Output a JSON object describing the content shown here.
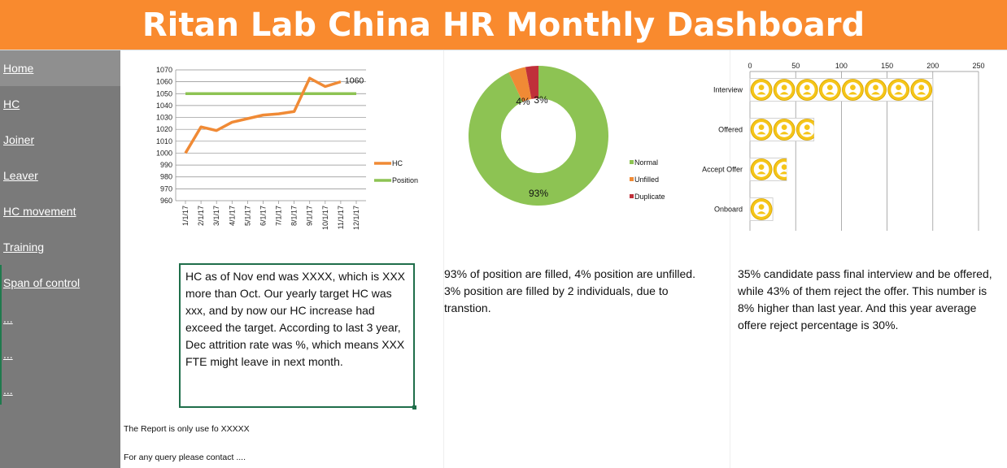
{
  "header": {
    "title": "Ritan Lab China HR Monthly Dashboard"
  },
  "sidebar": {
    "items": [
      {
        "label": "Home",
        "active": true
      },
      {
        "label": "HC"
      },
      {
        "label": "Joiner"
      },
      {
        "label": "Leaver"
      },
      {
        "label": "HC movement"
      },
      {
        "label": "Training "
      },
      {
        "label": "Span of control"
      },
      {
        "label": "..."
      },
      {
        "label": "..."
      },
      {
        "label": "..."
      }
    ]
  },
  "colors": {
    "header": "#f98a2e",
    "sidebar": "#7a7a7a",
    "hc": "#f08a35",
    "position": "#8dc353",
    "normal": "#8dc353",
    "unfilled": "#f08a35",
    "duplicate": "#c0303a",
    "pictogram": "#f5c518"
  },
  "chart_data": [
    {
      "type": "line",
      "x": [
        "1/1/17",
        "2/1/17",
        "3/1/17",
        "4/1/17",
        "5/1/17",
        "6/1/17",
        "7/1/17",
        "8/1/17",
        "9/1/17",
        "10/1/17",
        "11/1/17",
        "12/1/17"
      ],
      "series": [
        {
          "name": "HC",
          "values": [
            1000,
            1022,
            1019,
            1026,
            1029,
            1032,
            1033,
            1035,
            1063,
            1056,
            1060,
            null
          ]
        },
        {
          "name": "Position",
          "values": [
            1050,
            1050,
            1050,
            1050,
            1050,
            1050,
            1050,
            1050,
            1050,
            1050,
            1050,
            1050
          ]
        }
      ],
      "ylim": [
        960,
        1070
      ],
      "yticks": [
        960,
        970,
        980,
        990,
        1000,
        1010,
        1020,
        1030,
        1040,
        1050,
        1060,
        1070
      ],
      "data_label": "1060",
      "grid": true,
      "legend": "right"
    },
    {
      "type": "pie",
      "donut": true,
      "categories": [
        "Normal",
        "Unfilled",
        "Duplicate"
      ],
      "values": [
        93,
        4,
        3
      ],
      "labels": [
        "93%",
        "4%",
        "3%"
      ],
      "legend": "right"
    },
    {
      "type": "bar",
      "orientation": "horizontal",
      "categories": [
        "Interview",
        "Offered",
        "Accept Offer",
        "Onboard"
      ],
      "values": [
        200,
        70,
        40,
        25
      ],
      "xlim": [
        0,
        250
      ],
      "xticks": [
        0,
        50,
        100,
        150,
        200,
        250
      ],
      "pictogram_unit": 25,
      "grid": true,
      "axis_position": "top"
    }
  ],
  "notes": {
    "hc_box": "HC as of Nov end was XXXX, which is XXX more than Oct. Our yearly target HC was xxx, and by now our HC increase had exceed the target. According to last 3 year, Dec attrition rate was %, which means XXX FTE might leave in next month.",
    "position_text": "93% of position are filled, 4% position are unfilled. 3% position are filled by 2 individuals, due to transtion.",
    "recruit_text": "35% candidate pass final interview and be offered, while 43% of them reject the offer. This number is 8% higher than last year. And this year average offere reject percentage is 30%."
  },
  "footer": {
    "line1": "The Report is only use fo XXXXX",
    "line2": "For any query please contact ...."
  }
}
